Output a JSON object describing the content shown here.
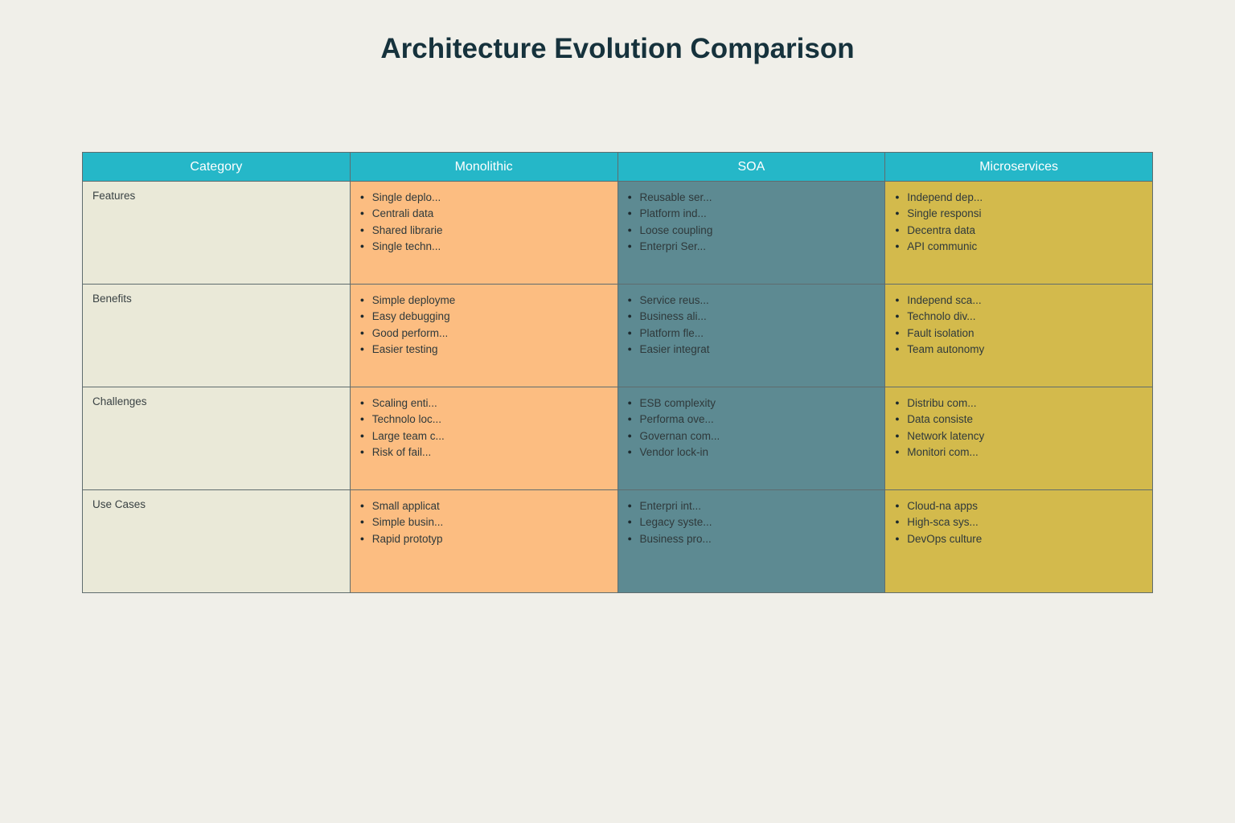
{
  "title": "Architecture Evolution Comparison",
  "colors": {
    "page_bg": "#f0efe9",
    "title_text": "#16323c",
    "header_bg": "#25b7c8",
    "header_text": "#ffffff",
    "category_bg": "#eae9d8",
    "monolithic_bg": "#fcbd81",
    "soa_bg": "#5d8a92",
    "microservices_bg": "#d3ba4c",
    "border": "#5f6c6e",
    "cell_text": "#2f393b"
  },
  "table": {
    "columns": [
      {
        "key": "category",
        "label": "Category"
      },
      {
        "key": "monolithic",
        "label": "Monolithic",
        "bg": "#fcbd81"
      },
      {
        "key": "soa",
        "label": "SOA",
        "bg": "#5d8a92"
      },
      {
        "key": "microservices",
        "label": "Microservices",
        "bg": "#d3ba4c"
      }
    ],
    "rows": [
      {
        "category": "Features",
        "monolithic": [
          "Single deplo...",
          "Centrali data",
          "Shared librarie",
          "Single techn..."
        ],
        "soa": [
          "Reusable ser...",
          "Platform ind...",
          "Loose coupling",
          "Enterpri Ser..."
        ],
        "microservices": [
          "Independ dep...",
          "Single responsi",
          "Decentra data",
          "API communic"
        ]
      },
      {
        "category": "Benefits",
        "monolithic": [
          "Simple deployme",
          "Easy debugging",
          "Good perform...",
          "Easier testing"
        ],
        "soa": [
          "Service reus...",
          "Business ali...",
          "Platform fle...",
          "Easier integrat"
        ],
        "microservices": [
          "Independ sca...",
          "Technolo div...",
          "Fault isolation",
          "Team autonomy"
        ]
      },
      {
        "category": "Challenges",
        "monolithic": [
          "Scaling enti...",
          "Technolo loc...",
          "Large team c...",
          "Risk of fail..."
        ],
        "soa": [
          "ESB complexity",
          "Performa ove...",
          "Governan com...",
          "Vendor lock-in"
        ],
        "microservices": [
          "Distribu com...",
          "Data consiste",
          "Network latency",
          "Monitori com..."
        ]
      },
      {
        "category": "Use Cases",
        "monolithic": [
          "Small applicat",
          "Simple busin...",
          "Rapid prototyp"
        ],
        "soa": [
          "Enterpri int...",
          "Legacy syste...",
          "Business pro..."
        ],
        "microservices": [
          "Cloud-na apps",
          "High-sca sys...",
          "DevOps culture"
        ]
      }
    ]
  }
}
